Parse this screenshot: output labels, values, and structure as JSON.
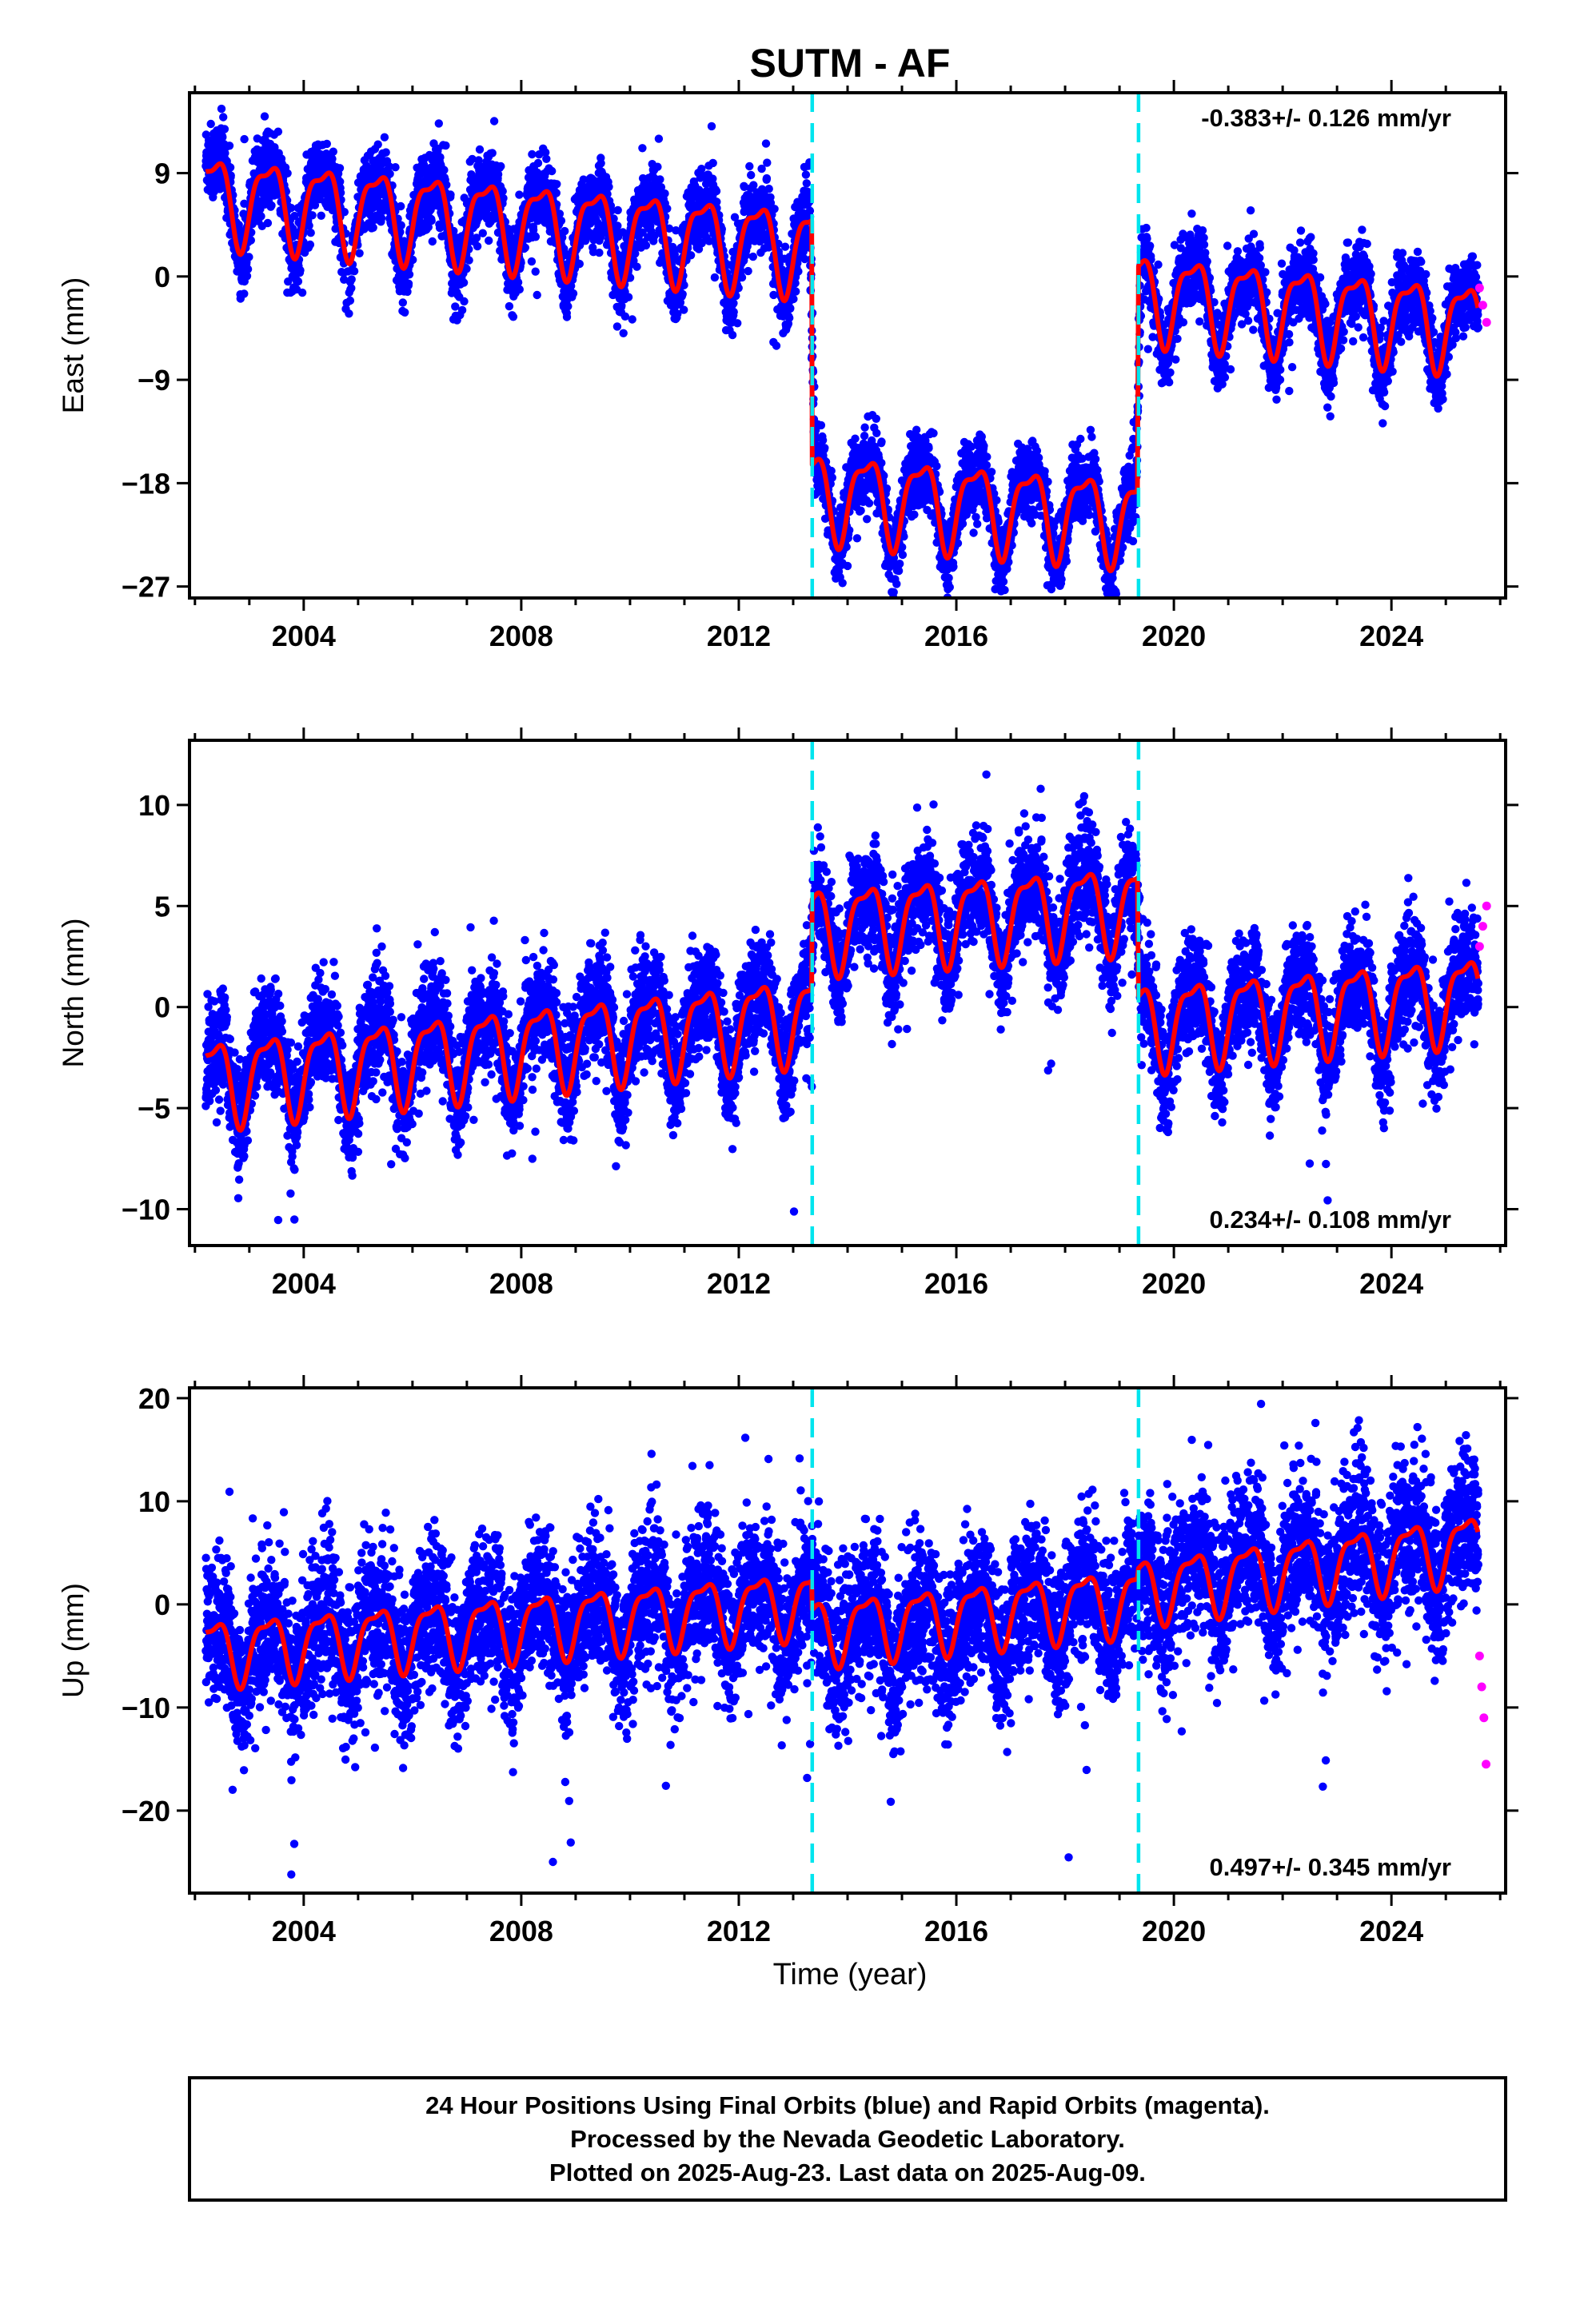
{
  "title": "SUTM - AF",
  "xlabel": "Time (year)",
  "footer_lines": [
    "24 Hour Positions Using Final Orbits (blue) and Rapid Orbits (magenta).",
    "Processed by the Nevada Geodetic Laboratory.",
    "Plotted on 2025-Aug-23. Last data on 2025-Aug-09."
  ],
  "colors": {
    "final": "#0000ff",
    "rapid": "#ff00ff",
    "model": "#ff0000",
    "offset": "#00e5ee",
    "frame": "#000000"
  },
  "chart_data": [
    {
      "type": "scatter",
      "ylabel": "East (mm)",
      "rate_label": "-0.383+/- 0.126 mm/yr",
      "rate_position": "top-right",
      "xlim": [
        2001.9,
        2026.1
      ],
      "ylim": [
        -28,
        16
      ],
      "xticks": [
        2004,
        2008,
        2012,
        2016,
        2020,
        2024
      ],
      "yticks": [
        -27,
        -18,
        -9,
        0,
        9
      ],
      "ytick_labels": [
        "−27",
        "−18",
        "−9",
        "0",
        "9"
      ],
      "offsets": [
        2013.35,
        2019.35
      ],
      "series": [
        {
          "kind": "final",
          "x": [
            2002.2,
            2003.0,
            2004.0,
            2005.0,
            2006.0,
            2007.0,
            2008.0,
            2009.0,
            2010.0,
            2011.0,
            2012.0,
            2013.3,
            2013.4,
            2014.0,
            2015.0,
            2016.0,
            2017.0,
            2018.0,
            2019.3,
            2019.4,
            2020.0,
            2021.0,
            2022.0,
            2023.0,
            2024.0,
            2025.0,
            2025.6
          ],
          "y": [
            8.0,
            6.5,
            6.2,
            5.7,
            5.4,
            5.0,
            4.6,
            4.2,
            3.8,
            3.5,
            3.1,
            2.6,
            -18.8,
            -19.0,
            -19.4,
            -19.8,
            -20.1,
            -20.5,
            -21.0,
            -1.5,
            -2.0,
            -2.4,
            -2.8,
            -3.2,
            -3.6,
            -4.0,
            -4.2
          ]
        },
        {
          "kind": "rapid",
          "x": [
            2025.62,
            2025.68,
            2025.75
          ],
          "y": [
            -1.0,
            -2.5,
            -4.0
          ]
        },
        {
          "kind": "model",
          "x": [
            2002.2,
            2013.35,
            2013.35,
            2019.35,
            2019.35,
            2025.6
          ],
          "y": [
            7.0,
            2.5,
            -18.8,
            -21.0,
            -1.5,
            -4.2
          ]
        }
      ]
    },
    {
      "type": "scatter",
      "ylabel": "North (mm)",
      "rate_label": "0.234+/- 0.108 mm/yr",
      "rate_position": "bottom-right",
      "xlim": [
        2001.9,
        2026.1
      ],
      "ylim": [
        -11.8,
        13.2
      ],
      "xticks": [
        2004,
        2008,
        2012,
        2016,
        2020,
        2024
      ],
      "yticks": [
        -10,
        -5,
        0,
        5,
        10
      ],
      "ytick_labels": [
        "−10",
        "−5",
        "0",
        "5",
        "10"
      ],
      "offsets": [
        2013.35,
        2019.35
      ],
      "series": [
        {
          "kind": "final",
          "x": [
            2002.2,
            2003.0,
            2004.0,
            2005.0,
            2006.0,
            2007.0,
            2008.0,
            2009.0,
            2010.0,
            2011.0,
            2012.0,
            2013.3,
            2013.4,
            2014.0,
            2015.0,
            2016.0,
            2017.0,
            2018.0,
            2019.3,
            2019.4,
            2020.0,
            2021.0,
            2022.0,
            2023.0,
            2024.0,
            2025.0,
            2025.6
          ],
          "y": [
            -3.5,
            -3.0,
            -2.7,
            -2.5,
            -2.2,
            -2.0,
            -1.7,
            -1.5,
            -1.2,
            -1.0,
            -0.7,
            -0.4,
            4.0,
            4.1,
            4.3,
            4.5,
            4.7,
            4.9,
            5.1,
            -0.8,
            -0.7,
            -0.5,
            -0.3,
            -0.1,
            0.1,
            0.3,
            0.5
          ]
        },
        {
          "kind": "rapid",
          "x": [
            2025.62,
            2025.68,
            2025.75
          ],
          "y": [
            3.0,
            4.0,
            5.0
          ]
        },
        {
          "kind": "model",
          "x": [
            2002.2,
            2013.35,
            2013.35,
            2019.35,
            2019.35,
            2025.6
          ],
          "y": [
            -3.6,
            -0.4,
            4.0,
            5.1,
            -0.8,
            0.6
          ]
        }
      ]
    },
    {
      "type": "scatter",
      "ylabel": "Up (mm)",
      "rate_label": "0.497+/- 0.345 mm/yr",
      "rate_position": "bottom-right",
      "xlim": [
        2001.9,
        2026.1
      ],
      "ylim": [
        -28,
        21
      ],
      "xticks": [
        2004,
        2008,
        2012,
        2016,
        2020,
        2024
      ],
      "yticks": [
        -20,
        -10,
        0,
        10,
        20
      ],
      "ytick_labels": [
        "−20",
        "−10",
        "0",
        "10",
        "20"
      ],
      "offsets": [
        2013.35,
        2019.35
      ],
      "series": [
        {
          "kind": "final",
          "x": [
            2002.2,
            2003.0,
            2004.0,
            2005.0,
            2006.0,
            2007.0,
            2008.0,
            2009.0,
            2010.0,
            2011.0,
            2012.0,
            2013.3,
            2013.4,
            2014.0,
            2015.0,
            2016.0,
            2017.0,
            2018.0,
            2019.3,
            2019.4,
            2020.0,
            2021.0,
            2022.0,
            2023.0,
            2024.0,
            2025.0,
            2025.6
          ],
          "y": [
            -4.5,
            -4.2,
            -3.7,
            -3.3,
            -2.9,
            -2.5,
            -2.0,
            -1.6,
            -1.2,
            -0.7,
            -0.3,
            0.3,
            -2.5,
            -2.6,
            -2.8,
            -2.0,
            -1.2,
            -0.4,
            0.6,
            1.5,
            2.2,
            3.0,
            3.6,
            4.2,
            4.8,
            5.4,
            5.8
          ]
        },
        {
          "kind": "rapid",
          "x": [
            2025.62,
            2025.66,
            2025.7,
            2025.74
          ],
          "y": [
            -5.0,
            -8.0,
            -11.0,
            -15.5
          ]
        },
        {
          "kind": "model",
          "x": [
            2002.2,
            2013.35,
            2013.35,
            2019.35,
            2019.35,
            2025.6
          ],
          "y": [
            -4.5,
            0.3,
            -2.5,
            0.6,
            1.5,
            5.8
          ]
        }
      ]
    }
  ]
}
